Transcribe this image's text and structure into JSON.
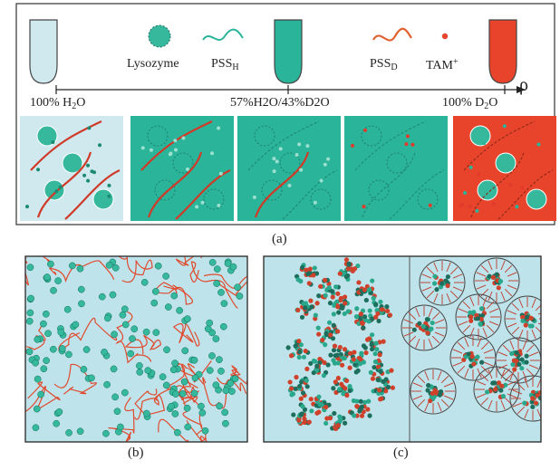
{
  "panel_a": {
    "legend": {
      "lysozyme": "Lysozyme",
      "pss_h": {
        "base": "PSS",
        "sub": "H"
      },
      "pss_d": {
        "base": "PSS",
        "sub": "D"
      },
      "tam": {
        "base": "TAM",
        "sup": "+"
      }
    },
    "axis": {
      "symbol": "ρ",
      "ticks": [
        {
          "pre": "100% H",
          "sub": "2",
          "post": "O"
        },
        {
          "text": "57%H2O/43%D2O"
        },
        {
          "pre": "100% D",
          "sub": "2",
          "post": "O"
        }
      ]
    },
    "caption": "(a)"
  },
  "panel_b": {
    "caption": "(b)"
  },
  "panel_c": {
    "caption": "(c)"
  },
  "colors": {
    "h2o_bg": "#cfe9ef",
    "contrast_green": "#2ab49a",
    "d2o_red": "#e8432b",
    "polymer_red": "#d03a28",
    "lysozyme_teal": "#35b89c",
    "panel_light": "#bfe3ea"
  }
}
